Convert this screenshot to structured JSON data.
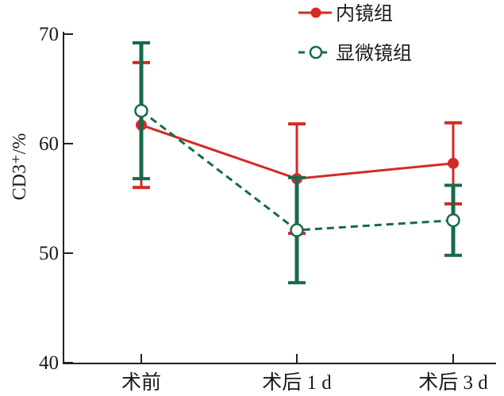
{
  "chart_data": {
    "type": "line",
    "title": "",
    "xlabel": "",
    "ylabel": "CD3⁺/%",
    "ylim": [
      40,
      70
    ],
    "yticks": [
      "40",
      "50",
      "60",
      "70"
    ],
    "categories": [
      "术前",
      "术后 1 d",
      "术后 3 d"
    ],
    "grid": false,
    "legend_position": "top-right",
    "series": [
      {
        "name": "内镜组",
        "values": [
          61.7,
          56.8,
          58.2
        ],
        "error": [
          5.7,
          5.0,
          3.7
        ],
        "color": "#d42a26",
        "line_style": "solid",
        "marker": "filled-circle"
      },
      {
        "name": "显微镜组",
        "values": [
          63.0,
          52.1,
          53.0
        ],
        "error": [
          6.2,
          4.8,
          3.2
        ],
        "color": "#176a4a",
        "line_style": "dashed",
        "marker": "open-circle"
      }
    ]
  }
}
